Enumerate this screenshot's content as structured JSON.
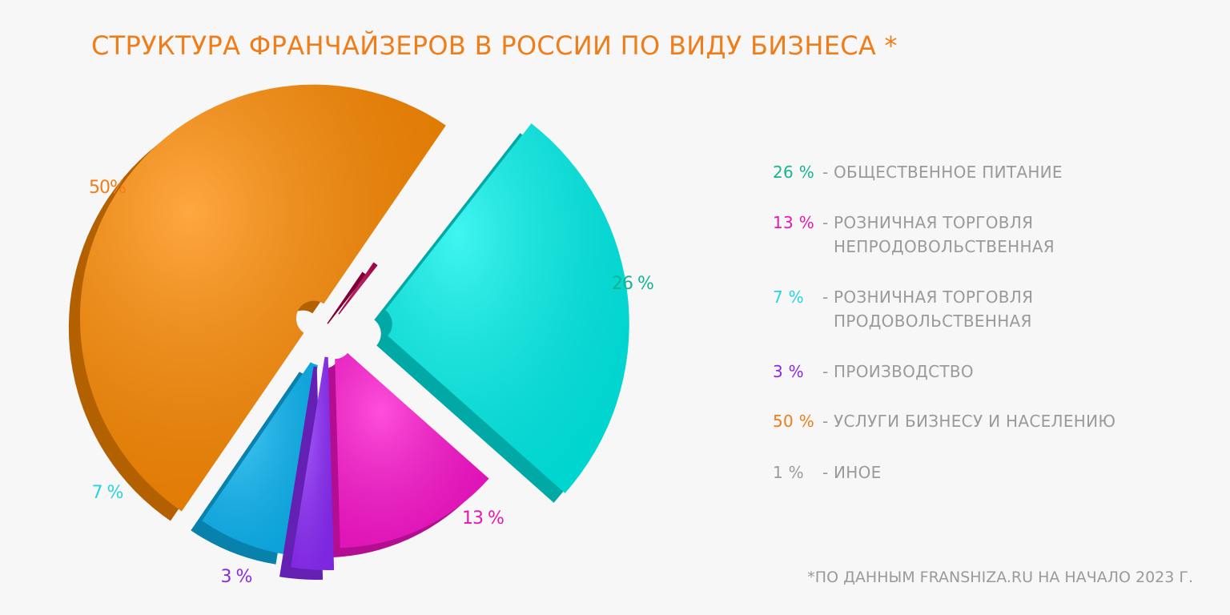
{
  "title": "СТРУКТУРА ФРАНЧАЙЗЕРОВ В РОССИИ ПО ВИДУ БИЗНЕСА *",
  "footnote": "*ПО ДАННЫМ FRANSHIZA.RU НА НАЧАЛО 2023 Г.",
  "chart_data": {
    "type": "pie",
    "title": "СТРУКТУРА ФРАНЧАЙЗЕРОВ В РОССИИ ПО ВИДУ БИЗНЕСА *",
    "legend_position": "right",
    "slices": [
      {
        "label": "ОБЩЕСТВЕННОЕ ПИТАНИЕ",
        "legend_label_lines": [
          "ОБЩЕСТВЕННОЕ ПИТАНИЕ"
        ],
        "value": 26,
        "slice_label": "26 %",
        "legend_value": "26 %",
        "color": "#13b592",
        "fill": "#00f2ec"
      },
      {
        "label": "РОЗНИЧНАЯ ТОРГОВЛЯ НЕПРОДОВОЛЬСТВЕННАЯ",
        "legend_label_lines": [
          "РОЗНИЧНАЯ ТОРГОВЛЯ",
          "НЕПРОДОВОЛЬСТВЕННАЯ"
        ],
        "value": 13,
        "slice_label": "13 %",
        "legend_value": "13 %",
        "color": "#e617b4",
        "fill": "#ff14d0"
      },
      {
        "label": "ПРОИЗВОДСТВО",
        "legend_label_lines": [
          "ПРОИЗВОДСТВО"
        ],
        "value": 3,
        "slice_label": "3 %",
        "legend_value": "3 %",
        "color": "#8a2be2",
        "fill": "#8f2cff"
      },
      {
        "label": "РОЗНИЧНАЯ ТОРГОВЛЯ ПРОДОВОЛЬСТВЕННАЯ",
        "legend_label_lines": [
          "РОЗНИЧНАЯ ТОРГОВЛЯ",
          "ПРОДОВОЛЬСТВЕННАЯ"
        ],
        "value": 7,
        "slice_label": "7 %",
        "legend_value": "7 %",
        "color": "#29d3e3",
        "fill": "#0bb8f7"
      },
      {
        "label": "УСЛУГИ БИЗНЕСУ И НАСЕЛЕНИЮ",
        "legend_label_lines": [
          "УСЛУГИ БИЗНЕСУ И НАСЕЛЕНИЮ"
        ],
        "value": 50,
        "slice_label": "50%",
        "legend_value": "50 %",
        "color": "#ef7d1a",
        "fill": "#ff8a00"
      },
      {
        "label": "ИНОЕ",
        "legend_label_lines": [
          "ИНОЕ"
        ],
        "value": 1,
        "slice_label": "",
        "legend_value": "1 %",
        "color": "#9a9a9a",
        "fill": "#b4004c"
      }
    ],
    "legend_order": [
      0,
      1,
      3,
      2,
      4,
      5
    ]
  }
}
